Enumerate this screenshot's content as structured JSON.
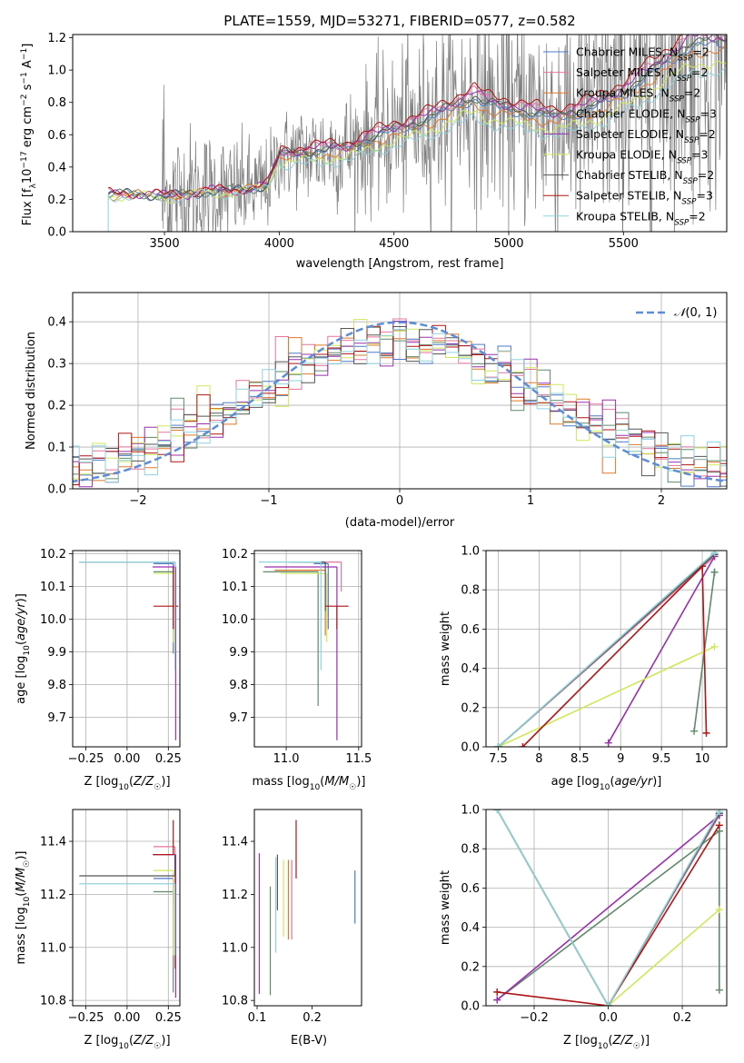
{
  "figure_title": "PLATE=1559, MJD=53271, FIBERID=0577, z=0.582",
  "colors": {
    "Chabrier MILES": "#4e79c9",
    "Salpeter MILES": "#e6749e",
    "Kroupa MILES": "#e0782a",
    "Chabrier ELODIE": "#5f8a6a",
    "Salpeter ELODIE": "#9b2fb0",
    "Kroupa ELODIE": "#cfe85a",
    "Chabrier STELIB": "#555555",
    "Salpeter STELIB": "#b01414",
    "Kroupa STELIB": "#8fd3dc",
    "data": "#7f7f7f",
    "normal": "#5b8ed6"
  },
  "chart_data": [
    {
      "id": "spectrum",
      "type": "line",
      "title": "PLATE=1559, MJD=53271, FIBERID=0577, z=0.582",
      "xlabel": "wavelength [Angstrom, rest frame]",
      "ylabel": "Flux [f_λ 10^-17 erg cm^-2 s^-1 A^-1]",
      "xlim": [
        3100,
        5950
      ],
      "ylim": [
        0,
        1.22
      ],
      "xticks": [
        3500,
        4000,
        4500,
        5000,
        5500
      ],
      "yticks": [
        0.0,
        0.2,
        0.4,
        0.6,
        0.8,
        1.0,
        1.2
      ],
      "grid": false,
      "legend_position": "top-right",
      "legend": [
        {
          "label": "Chabrier MILES, N",
          "sub": "SSP",
          "suffix": "=2",
          "model": "Chabrier MILES"
        },
        {
          "label": "Salpeter MILES, N",
          "sub": "SSP",
          "suffix": "=2",
          "model": "Salpeter MILES"
        },
        {
          "label": "Kroupa MILES, N",
          "sub": "SSP",
          "suffix": "=2",
          "model": "Kroupa MILES"
        },
        {
          "label": "Chabrier ELODIE, N",
          "sub": "SSP",
          "suffix": "=3",
          "model": "Chabrier ELODIE"
        },
        {
          "label": "Salpeter ELODIE, N",
          "sub": "SSP",
          "suffix": "=2",
          "model": "Salpeter ELODIE"
        },
        {
          "label": "Kroupa ELODIE, N",
          "sub": "SSP",
          "suffix": "=3",
          "model": "Kroupa ELODIE"
        },
        {
          "label": "Chabrier STELIB, N",
          "sub": "SSP",
          "suffix": "=2",
          "model": "Chabrier STELIB"
        },
        {
          "label": "Salpeter STELIB, N",
          "sub": "SSP",
          "suffix": "=3",
          "model": "Salpeter STELIB"
        },
        {
          "label": "Kroupa STELIB, N",
          "sub": "SSP",
          "suffix": "=2",
          "model": "Kroupa STELIB"
        }
      ],
      "models_trend": {
        "x": [
          3255,
          3300,
          3400,
          3500,
          3600,
          3700,
          3800,
          3900,
          3950,
          4000,
          4100,
          4200,
          4300,
          4400,
          4500,
          4600,
          4700,
          4800,
          4850,
          4900,
          5000,
          5100,
          5200,
          5300,
          5400,
          5500,
          5600,
          5700,
          5800
        ],
        "y": [
          0.23,
          0.23,
          0.23,
          0.22,
          0.23,
          0.25,
          0.25,
          0.27,
          0.29,
          0.47,
          0.48,
          0.5,
          0.51,
          0.57,
          0.62,
          0.66,
          0.72,
          0.79,
          0.82,
          0.78,
          0.75,
          0.72,
          0.7,
          0.73,
          0.78,
          0.85,
          0.95,
          1.05,
          1.15
        ]
      },
      "model_offsets": {
        "Chabrier MILES": 0.0,
        "Salpeter MILES": 0.04,
        "Kroupa MILES": -0.02,
        "Chabrier ELODIE": 0.01,
        "Salpeter ELODIE": 0.03,
        "Kroupa ELODIE": -0.06,
        "Chabrier STELIB": 0.02,
        "Salpeter STELIB": 0.06,
        "Kroupa STELIB": -0.09
      },
      "data_noise_envelope": {
        "x": [
          3500,
          3700,
          4000,
          4300,
          4500,
          4800,
          5000,
          5200,
          5400,
          5600,
          5800
        ],
        "amplitude": [
          0.45,
          0.35,
          0.25,
          0.35,
          0.45,
          0.55,
          0.6,
          0.7,
          0.75,
          0.8,
          0.9
        ]
      }
    },
    {
      "id": "residuals",
      "type": "histogram",
      "xlabel": "(data-model)/error",
      "ylabel": "Normed distribution",
      "xlim": [
        -2.5,
        2.5
      ],
      "ylim": [
        0,
        0.47
      ],
      "xticks": [
        -2,
        -1,
        0,
        1,
        2
      ],
      "yticks": [
        0.0,
        0.1,
        0.2,
        0.3,
        0.4
      ],
      "grid": true,
      "legend_position": "top-right",
      "legend": [
        {
          "label": "𝒩(0, 1)",
          "style": "dashed"
        }
      ],
      "bin_width": 0.1,
      "normal": {
        "mean": 0,
        "sigma": 1
      }
    },
    {
      "id": "age_vs_Z",
      "type": "errorbar",
      "xlabel": "Z [log10(Z/Z☉)]",
      "ylabel": "age [log10(age/yr)]",
      "xlim": [
        -0.33,
        0.32
      ],
      "ylim": [
        9.61,
        10.21
      ],
      "xticks": [
        -0.25,
        0.0,
        0.25
      ],
      "xticklabels": [
        "−0.25",
        "0.00",
        "0.25"
      ],
      "yticks": [
        9.7,
        9.8,
        9.9,
        10.0,
        10.1,
        10.2
      ],
      "grid": true,
      "points": [
        {
          "model": "Chabrier MILES",
          "x": 0.28,
          "xerr": [
            0.12,
            0.0
          ],
          "y": 10.17,
          "yerr": [
            0.2,
            0.0
          ]
        },
        {
          "model": "Salpeter MILES",
          "x": 0.29,
          "xerr": [
            0.13,
            0.0
          ],
          "y": 10.175,
          "yerr": [
            0.2,
            0.0
          ]
        },
        {
          "model": "Kroupa MILES",
          "x": 0.29,
          "xerr": [
            0.0,
            0.0
          ],
          "y": 10.15,
          "yerr": [
            0.2,
            0.0
          ]
        },
        {
          "model": "Chabrier ELODIE",
          "x": 0.28,
          "xerr": [
            0.12,
            0.0
          ],
          "y": 10.145,
          "yerr": [
            0.25,
            0.0
          ]
        },
        {
          "model": "Salpeter ELODIE",
          "x": 0.295,
          "xerr": [
            0.14,
            0.0
          ],
          "y": 10.16,
          "yerr": [
            0.53,
            0.0
          ]
        },
        {
          "model": "Kroupa ELODIE",
          "x": 0.28,
          "xerr": [
            0.12,
            0.0
          ],
          "y": 10.14,
          "yerr": [
            0.21,
            0.0
          ]
        },
        {
          "model": "Chabrier STELIB",
          "x": 0.29,
          "xerr": [
            0.58,
            0.0
          ],
          "y": 10.175,
          "yerr": [
            0.15,
            0.0
          ]
        },
        {
          "model": "Salpeter STELIB",
          "x": 0.28,
          "xerr": [
            0.12,
            0.03
          ],
          "y": 10.04,
          "yerr": [
            0.07,
            0.12
          ]
        },
        {
          "model": "Kroupa STELIB",
          "x": 0.29,
          "xerr": [
            0.58,
            0.0
          ],
          "y": 10.175,
          "yerr": [
            0.33,
            0.0
          ]
        }
      ]
    },
    {
      "id": "age_vs_mass",
      "type": "errorbar",
      "xlabel": "mass [log10(M/M☉)]",
      "ylabel": "",
      "xlim": [
        10.78,
        11.52
      ],
      "ylim": [
        9.61,
        10.21
      ],
      "xticks": [
        11.0,
        11.5
      ],
      "xticklabels": [
        "11.0",
        "11.5"
      ],
      "yticks": [
        9.7,
        9.8,
        9.9,
        10.0,
        10.1,
        10.2
      ],
      "grid": true,
      "points": [
        {
          "model": "Chabrier MILES",
          "x": 11.29,
          "xerr": [
            0.1,
            0.0
          ],
          "y": 10.17,
          "yerr": [
            0.2,
            0.0
          ]
        },
        {
          "model": "Salpeter MILES",
          "x": 11.38,
          "xerr": [
            0.25,
            0.0
          ],
          "y": 10.175,
          "yerr": [
            0.09,
            0.0
          ]
        },
        {
          "model": "Kroupa MILES",
          "x": 11.27,
          "xerr": [
            0.35,
            0.0
          ],
          "y": 10.15,
          "yerr": [
            0.2,
            0.0
          ]
        },
        {
          "model": "Chabrier ELODIE",
          "x": 11.22,
          "xerr": [
            0.38,
            0.0
          ],
          "y": 10.145,
          "yerr": [
            0.41,
            0.0
          ]
        },
        {
          "model": "Salpeter ELODIE",
          "x": 11.35,
          "xerr": [
            0.5,
            0.0
          ],
          "y": 10.16,
          "yerr": [
            0.53,
            0.0
          ]
        },
        {
          "model": "Kroupa ELODIE",
          "x": 11.28,
          "xerr": [
            0.32,
            0.0
          ],
          "y": 10.14,
          "yerr": [
            0.21,
            0.0
          ]
        },
        {
          "model": "Chabrier STELIB",
          "x": 11.27,
          "xerr": [
            0.25,
            0.0
          ],
          "y": 10.175,
          "yerr": [
            0.15,
            0.0
          ]
        },
        {
          "model": "Salpeter STELIB",
          "x": 11.35,
          "xerr": [
            0.08,
            0.08
          ],
          "y": 10.04,
          "yerr": [
            0.07,
            0.0
          ]
        },
        {
          "model": "Kroupa STELIB",
          "x": 11.24,
          "xerr": [
            0.43,
            0.0
          ],
          "y": 10.175,
          "yerr": [
            0.33,
            0.0
          ]
        }
      ]
    },
    {
      "id": "mass_weight_vs_age",
      "type": "line",
      "xlabel": "age [log10(age/yr)]",
      "ylabel": "mass weight",
      "xlim": [
        7.35,
        10.3
      ],
      "ylim": [
        0,
        1.0
      ],
      "xticks": [
        7.5,
        8.0,
        8.5,
        9.0,
        9.5,
        10.0
      ],
      "yticks": [
        0.0,
        0.2,
        0.4,
        0.6,
        0.8,
        1.0
      ],
      "grid": true,
      "series": [
        {
          "model": "Chabrier MILES",
          "x": [
            7.5,
            10.15
          ],
          "y": [
            0.0,
            0.98
          ]
        },
        {
          "model": "Salpeter MILES",
          "x": [
            7.5,
            10.15
          ],
          "y": [
            0.0,
            0.97
          ]
        },
        {
          "model": "Kroupa MILES",
          "x": [
            7.5,
            10.15
          ],
          "y": [
            0.0,
            0.98
          ]
        },
        {
          "model": "Chabrier ELODIE",
          "x": [
            9.9,
            10.15,
            10.15
          ],
          "y": [
            0.08,
            0.89,
            0.89
          ]
        },
        {
          "model": "Salpeter ELODIE",
          "x": [
            8.85,
            10.15
          ],
          "y": [
            0.02,
            0.97
          ]
        },
        {
          "model": "Kroupa ELODIE",
          "x": [
            7.5,
            10.15
          ],
          "y": [
            0.0,
            0.51
          ]
        },
        {
          "model": "Chabrier STELIB",
          "x": [
            7.5,
            10.15
          ],
          "y": [
            0.0,
            0.98
          ]
        },
        {
          "model": "Salpeter STELIB",
          "x": [
            7.8,
            10.0,
            10.05
          ],
          "y": [
            0.0,
            0.92,
            0.07
          ]
        },
        {
          "model": "Kroupa STELIB",
          "x": [
            7.5,
            10.15
          ],
          "y": [
            0.0,
            0.99
          ]
        }
      ]
    },
    {
      "id": "mass_vs_Z",
      "type": "errorbar",
      "xlabel": "Z [log10(Z/Z☉)]",
      "ylabel": "mass [log10(M/M☉)]",
      "xlim": [
        -0.33,
        0.32
      ],
      "ylim": [
        10.78,
        11.52
      ],
      "xticks": [
        -0.25,
        0.0,
        0.25
      ],
      "xticklabels": [
        "−0.25",
        "0.00",
        "0.25"
      ],
      "yticks": [
        10.8,
        11.0,
        11.2,
        11.4
      ],
      "grid": true,
      "points": [
        {
          "model": "Chabrier MILES",
          "x": 0.28,
          "xerr": [
            0.12,
            0.0
          ],
          "y": 11.26,
          "yerr": [
            0.1,
            0.0
          ]
        },
        {
          "model": "Salpeter MILES",
          "x": 0.29,
          "xerr": [
            0.13,
            0.0
          ],
          "y": 11.38,
          "yerr": [
            0.25,
            0.0
          ]
        },
        {
          "model": "Kroupa MILES",
          "x": 0.29,
          "xerr": [
            0.0,
            0.0
          ],
          "y": 11.27,
          "yerr": [
            0.35,
            0.0
          ]
        },
        {
          "model": "Chabrier ELODIE",
          "x": 0.28,
          "xerr": [
            0.12,
            0.0
          ],
          "y": 11.21,
          "yerr": [
            0.38,
            0.0
          ]
        },
        {
          "model": "Salpeter ELODIE",
          "x": 0.295,
          "xerr": [
            0.14,
            0.0
          ],
          "y": 11.35,
          "yerr": [
            0.54,
            0.0
          ]
        },
        {
          "model": "Kroupa ELODIE",
          "x": 0.28,
          "xerr": [
            0.12,
            0.0
          ],
          "y": 11.29,
          "yerr": [
            0.32,
            0.0
          ]
        },
        {
          "model": "Chabrier STELIB",
          "x": 0.29,
          "xerr": [
            0.58,
            0.0
          ],
          "y": 11.27,
          "yerr": [
            0.0,
            0.08
          ]
        },
        {
          "model": "Salpeter STELIB",
          "x": 0.28,
          "xerr": [
            0.12,
            0.0
          ],
          "y": 11.35,
          "yerr": [
            0.0,
            0.13
          ]
        },
        {
          "model": "Kroupa STELIB",
          "x": 0.29,
          "xerr": [
            0.58,
            0.0
          ],
          "y": 11.24,
          "yerr": [
            0.27,
            0.0
          ]
        }
      ]
    },
    {
      "id": "mass_vs_EBV",
      "type": "errorbar",
      "xlabel": "E(B-V)",
      "ylabel": "",
      "xlim": [
        0.095,
        0.29
      ],
      "ylim": [
        10.78,
        11.52
      ],
      "xticks": [
        0.1,
        0.2
      ],
      "xticklabels": [
        "0.1",
        "0.2"
      ],
      "yticks": [
        10.8,
        11.0,
        11.2,
        11.4
      ],
      "grid": false,
      "points": [
        {
          "model": "Chabrier MILES",
          "x": 0.278,
          "y": 11.19,
          "yerr": [
            0.1,
            0.1
          ]
        },
        {
          "model": "Salpeter MILES",
          "x": 0.163,
          "y": 11.18,
          "yerr": [
            0.15,
            0.15
          ]
        },
        {
          "model": "Kroupa MILES",
          "x": 0.157,
          "y": 11.18,
          "yerr": [
            0.15,
            0.15
          ]
        },
        {
          "model": "Chabrier ELODIE",
          "x": 0.124,
          "y": 11.025,
          "yerr": [
            0.205,
            0.205
          ]
        },
        {
          "model": "Salpeter ELODIE",
          "x": 0.104,
          "y": 11.09,
          "yerr": [
            0.265,
            0.265
          ]
        },
        {
          "model": "Kroupa ELODIE",
          "x": 0.148,
          "y": 11.185,
          "yerr": [
            0.145,
            0.145
          ]
        },
        {
          "model": "Chabrier STELIB",
          "x": 0.137,
          "y": 11.245,
          "yerr": [
            0.105,
            0.105
          ]
        },
        {
          "model": "Salpeter STELIB",
          "x": 0.171,
          "y": 11.37,
          "yerr": [
            0.11,
            0.11
          ]
        },
        {
          "model": "Kroupa STELIB",
          "x": 0.134,
          "y": 11.16,
          "yerr": [
            0.18,
            0.18
          ]
        }
      ]
    },
    {
      "id": "mass_weight_vs_Z",
      "type": "line",
      "xlabel": "Z [log10(Z/Z☉)]",
      "ylabel": "mass weight",
      "xlim": [
        -0.33,
        0.32
      ],
      "ylim": [
        0,
        1.0
      ],
      "xticks": [
        -0.2,
        0.0,
        0.2
      ],
      "xticklabels": [
        "−0.2",
        "0.0",
        "0.2"
      ],
      "yticks": [
        0.0,
        0.2,
        0.4,
        0.6,
        0.8,
        1.0
      ],
      "grid": true,
      "series": [
        {
          "model": "Chabrier MILES",
          "x": [
            -0.3,
            0.0,
            0.3
          ],
          "y": [
            1.0,
            0.0,
            0.98
          ]
        },
        {
          "model": "Salpeter MILES",
          "x": [
            -0.3,
            0.0,
            0.3
          ],
          "y": [
            1.0,
            0.0,
            0.97
          ]
        },
        {
          "model": "Kroupa MILES",
          "x": [
            -0.3,
            0.0,
            0.3
          ],
          "y": [
            1.0,
            0.0,
            0.98
          ]
        },
        {
          "model": "Chabrier ELODIE",
          "x": [
            -0.3,
            0.3,
            0.3,
            0.3
          ],
          "y": [
            0.03,
            0.89,
            0.08,
            0.89
          ]
        },
        {
          "model": "Salpeter ELODIE",
          "x": [
            -0.3,
            0.3
          ],
          "y": [
            0.03,
            0.97
          ]
        },
        {
          "model": "Kroupa ELODIE",
          "x": [
            -0.3,
            0.0,
            0.3
          ],
          "y": [
            1.0,
            0.0,
            0.49
          ]
        },
        {
          "model": "Chabrier STELIB",
          "x": [
            -0.3,
            0.0,
            0.3
          ],
          "y": [
            1.0,
            0.0,
            0.98
          ]
        },
        {
          "model": "Salpeter STELIB",
          "x": [
            -0.3,
            0.0,
            0.3
          ],
          "y": [
            0.07,
            0.0,
            0.92
          ]
        },
        {
          "model": "Kroupa STELIB",
          "x": [
            -0.3,
            0.0,
            0.3
          ],
          "y": [
            1.0,
            0.0,
            0.99
          ]
        }
      ]
    }
  ]
}
